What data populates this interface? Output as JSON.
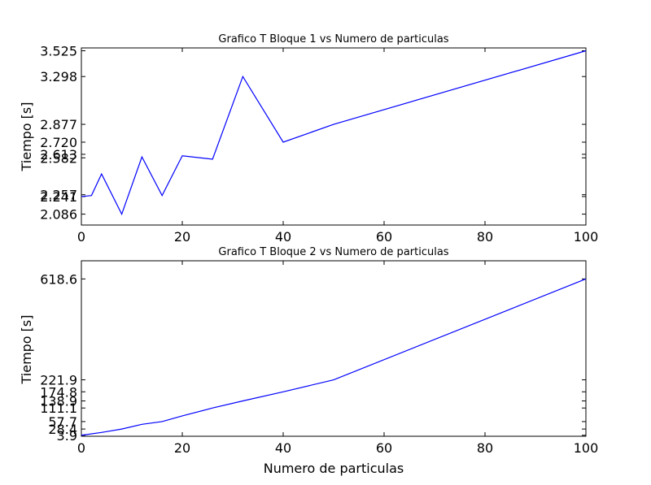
{
  "chart_data": [
    {
      "type": "line",
      "title": "Grafico T Bloque 1 vs Numero de particulas",
      "xlabel": "",
      "ylabel": "Tiempo [s]",
      "xlim": [
        0,
        100
      ],
      "ylim": [
        1.99,
        3.55
      ],
      "xticks": [
        0,
        20,
        40,
        60,
        80,
        100
      ],
      "xtick_labels": [
        "0",
        "20",
        "40",
        "60",
        "80",
        "100"
      ],
      "yticks": [
        2.086,
        2.241,
        2.257,
        2.582,
        2.613,
        2.72,
        2.877,
        3.298,
        3.525
      ],
      "ytick_labels": [
        "2.086",
        "2.241",
        "2.257",
        "2.582",
        "2.613",
        "2.720",
        "2.877",
        "3.298",
        "3.525"
      ],
      "grid": false,
      "color": "#0000ff",
      "series": [
        {
          "x": [
            0,
            2,
            4,
            8,
            12,
            16,
            20,
            26,
            32,
            40,
            50,
            100
          ],
          "y": [
            2.241,
            2.25,
            2.44,
            2.086,
            2.59,
            2.25,
            2.6,
            2.57,
            3.298,
            2.72,
            2.877,
            3.525
          ]
        }
      ]
    },
    {
      "type": "line",
      "title": "Grafico T Bloque 2 vs Numero de particulas",
      "xlabel": "Numero de particulas",
      "ylabel": "Tiempo [s]",
      "xlim": [
        0,
        100
      ],
      "ylim": [
        0,
        690
      ],
      "xticks": [
        0,
        20,
        40,
        60,
        80,
        100
      ],
      "xtick_labels": [
        "0",
        "20",
        "40",
        "60",
        "80",
        "100"
      ],
      "yticks": [
        3.9,
        28.4,
        57.7,
        111.1,
        138.9,
        174.8,
        221.9,
        618.6
      ],
      "ytick_labels": [
        "3.9",
        "28.4",
        "57.7",
        "111.1",
        "138.9",
        "174.8",
        "221.9",
        "618.6"
      ],
      "grid": false,
      "color": "#0000ff",
      "series": [
        {
          "x": [
            0,
            4,
            8,
            12,
            16,
            20,
            26,
            32,
            40,
            50,
            100
          ],
          "y": [
            3.9,
            15,
            28.4,
            47,
            57.7,
            80,
            111.1,
            138.9,
            174.8,
            221.9,
            618.6
          ]
        }
      ]
    }
  ]
}
